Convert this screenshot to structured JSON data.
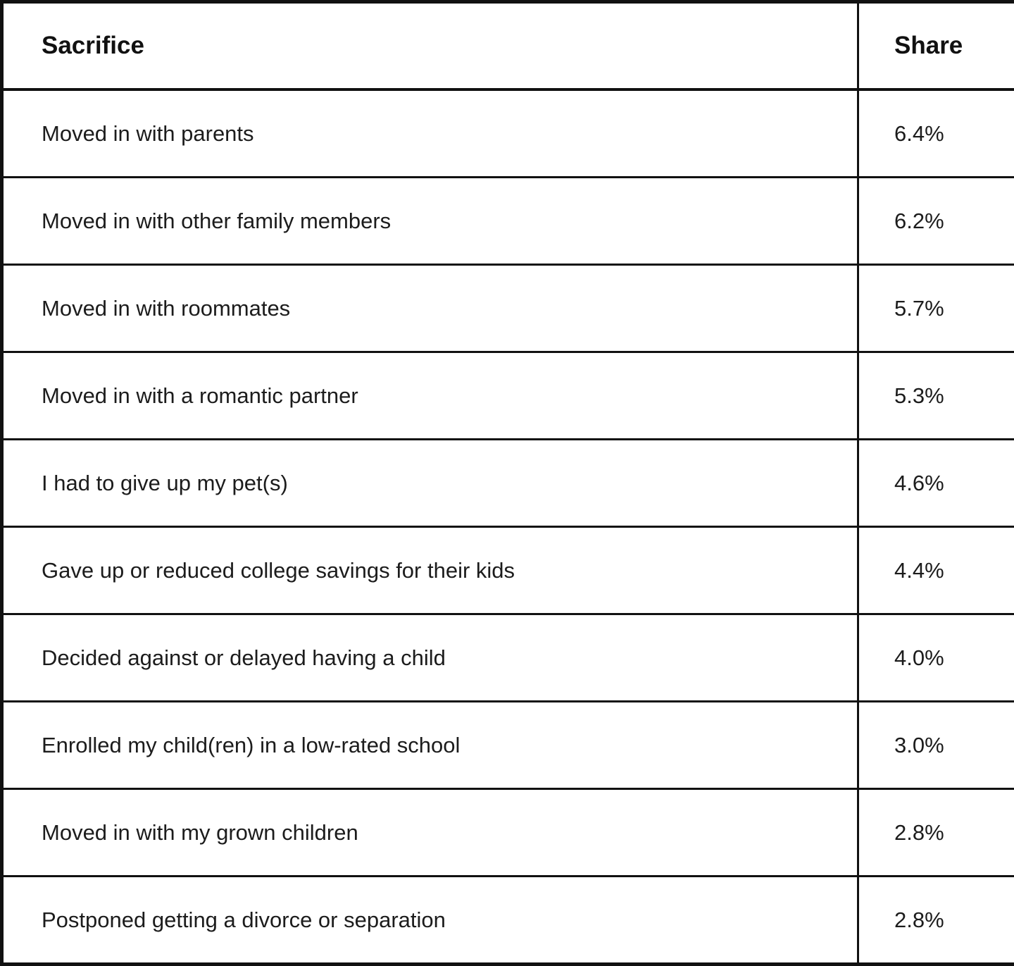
{
  "chart_data": {
    "type": "table",
    "columns": [
      "Sacrifice",
      "Share"
    ],
    "rows": [
      {
        "sacrifice": "Moved in with parents",
        "share": "6.4%"
      },
      {
        "sacrifice": "Moved in with other family members",
        "share": "6.2%"
      },
      {
        "sacrifice": "Moved in with roommates",
        "share": "5.7%"
      },
      {
        "sacrifice": "Moved in with a romantic partner",
        "share": "5.3%"
      },
      {
        "sacrifice": "I had to give up my pet(s)",
        "share": "4.6%"
      },
      {
        "sacrifice": "Gave up or reduced college savings for their kids",
        "share": "4.4%"
      },
      {
        "sacrifice": "Decided against or delayed having a child",
        "share": "4.0%"
      },
      {
        "sacrifice": "Enrolled my child(ren) in a low-rated school",
        "share": "3.0%"
      },
      {
        "sacrifice": "Moved in with my grown children",
        "share": "2.8%"
      },
      {
        "sacrifice": "Postponed getting a divorce or separation",
        "share": "2.8%"
      }
    ],
    "header": {
      "sacrifice_label": "Sacrifice",
      "share_label": "Share"
    },
    "colors": {
      "border": "#111111",
      "background": "#ffffff",
      "text": "#1c1c1c"
    }
  }
}
